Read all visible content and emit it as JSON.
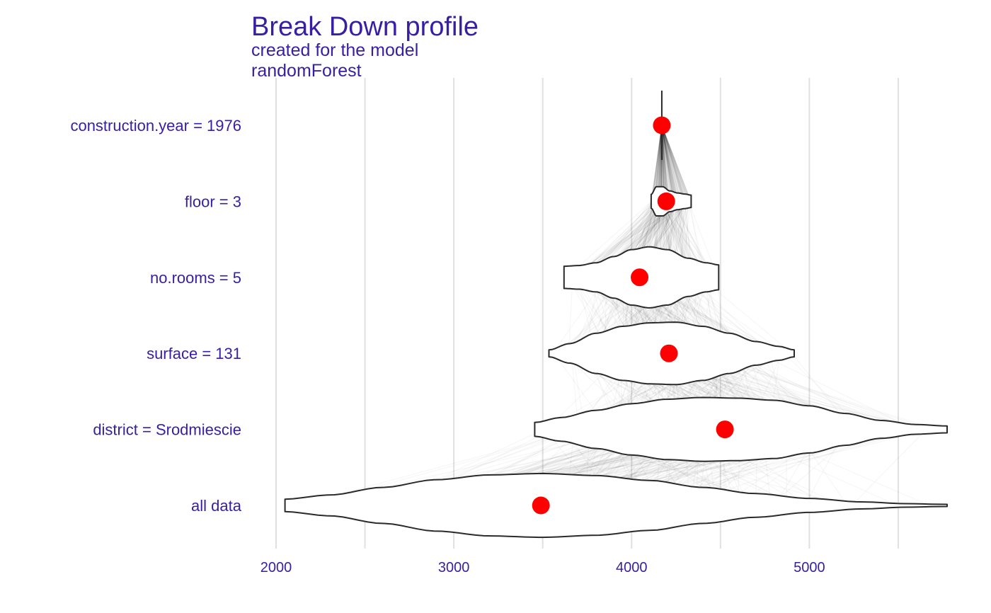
{
  "colors": {
    "title": "#371ea3",
    "point": "#ff0000",
    "violin_stroke": "#2a2a2a",
    "violin_fill": "#ffffff",
    "grid": "#e0e0e0",
    "path": "#000000"
  },
  "chart_data": {
    "type": "violin",
    "title": "Break Down profile",
    "subtitle_lines": [
      "created for the  model",
      "randomForest"
    ],
    "xlim": [
      1950,
      5780
    ],
    "x_ticks": [
      2000,
      3000,
      4000,
      5000
    ],
    "grid_x": [
      2000,
      2500,
      3000,
      3500,
      4000,
      4500,
      5000,
      5500
    ],
    "categories": [
      "construction.year = 1976",
      "floor = 3",
      "no.rooms = 5",
      "surface = 131",
      "district = Srodmiescie",
      "all data"
    ],
    "points": [
      4170,
      4195,
      4045,
      4210,
      4525,
      3490
    ],
    "violins": [
      {
        "min": 4170,
        "max": 4170,
        "widths": [
          [
            4170,
            0.45
          ]
        ]
      },
      {
        "min": 4110,
        "max": 4335,
        "widths": [
          [
            4110,
            0.2
          ],
          [
            4140,
            0.42
          ],
          [
            4175,
            0.42
          ],
          [
            4215,
            0.3
          ],
          [
            4260,
            0.24
          ],
          [
            4300,
            0.21
          ],
          [
            4335,
            0.18
          ]
        ]
      },
      {
        "min": 3620,
        "max": 4490,
        "widths": [
          [
            3620,
            0.32
          ],
          [
            3700,
            0.34
          ],
          [
            3800,
            0.42
          ],
          [
            3900,
            0.6
          ],
          [
            4000,
            0.8
          ],
          [
            4100,
            0.88
          ],
          [
            4200,
            0.8
          ],
          [
            4320,
            0.55
          ],
          [
            4420,
            0.42
          ],
          [
            4490,
            0.36
          ]
        ]
      },
      {
        "min": 3535,
        "max": 4915,
        "widths": [
          [
            3535,
            0.1
          ],
          [
            3650,
            0.28
          ],
          [
            3800,
            0.58
          ],
          [
            3950,
            0.78
          ],
          [
            4100,
            0.88
          ],
          [
            4250,
            0.9
          ],
          [
            4400,
            0.78
          ],
          [
            4550,
            0.58
          ],
          [
            4700,
            0.34
          ],
          [
            4830,
            0.2
          ],
          [
            4915,
            0.1
          ]
        ]
      },
      {
        "min": 3455,
        "max": 5775,
        "widths": [
          [
            3455,
            0.2
          ],
          [
            3600,
            0.34
          ],
          [
            3800,
            0.55
          ],
          [
            4000,
            0.74
          ],
          [
            4200,
            0.87
          ],
          [
            4400,
            0.92
          ],
          [
            4600,
            0.9
          ],
          [
            4800,
            0.84
          ],
          [
            5000,
            0.68
          ],
          [
            5200,
            0.46
          ],
          [
            5400,
            0.26
          ],
          [
            5600,
            0.14
          ],
          [
            5775,
            0.1
          ]
        ]
      },
      {
        "min": 2050,
        "max": 5775,
        "widths": [
          [
            2050,
            0.18
          ],
          [
            2300,
            0.3
          ],
          [
            2600,
            0.52
          ],
          [
            2900,
            0.74
          ],
          [
            3200,
            0.88
          ],
          [
            3500,
            0.92
          ],
          [
            3800,
            0.86
          ],
          [
            4100,
            0.72
          ],
          [
            4400,
            0.52
          ],
          [
            4700,
            0.34
          ],
          [
            5000,
            0.2
          ],
          [
            5300,
            0.1
          ],
          [
            5550,
            0.05
          ],
          [
            5775,
            0.03
          ]
        ]
      }
    ]
  }
}
